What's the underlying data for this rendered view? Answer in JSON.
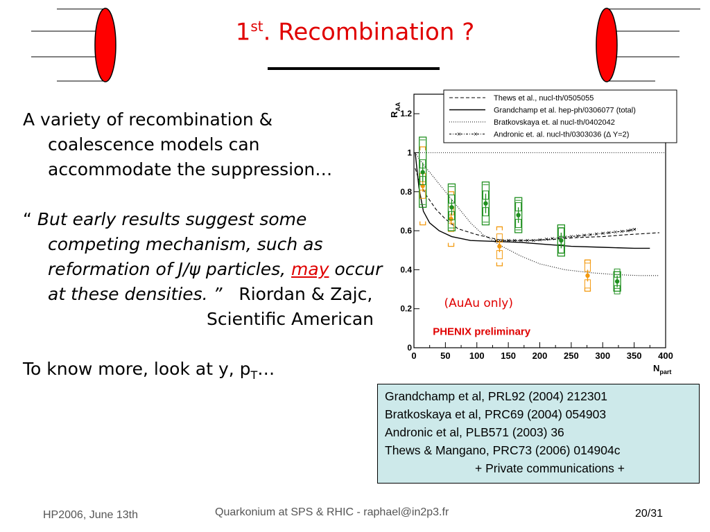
{
  "slide": {
    "title_prefix": "1",
    "title_sup": "st",
    "title_rest": ". Recombination ?",
    "bullet1": "A variety of recombination & coalescence models can accommodate the suppression…",
    "quote_open": "“ ",
    "quote_part1": "But early results suggest some competing mechanism, such as reformation of J/ψ particles, ",
    "quote_may": "may",
    "quote_part2": " occur at these densities. ”",
    "quote_authors": "Riordan & Zajc,",
    "quote_source": "Scientific American",
    "more_prefix": "To know more, look at y, p",
    "more_sub": "T",
    "more_suffix": "…"
  },
  "references": [
    "Grandchamp et al, PRL92 (2004) 212301",
    "Bratkoskaya et al, PRC69 (2004) 054903",
    "Andronic et al, PLB571 (2003) 36",
    "Thews & Mangano, PRC73 (2006) 014904c",
    "+ Private communications +"
  ],
  "footer": {
    "left": "HP2006, June 13th",
    "center": "Quarkonium at SPS & RHIC - raphael@in2p3.fr",
    "right": "20/31"
  },
  "colors": {
    "title": "#e00000",
    "ref_box": "#cde9ea",
    "orange": "#f39a10",
    "green": "#209020",
    "phenix": "#e00000"
  },
  "chart_data": {
    "type": "scatter",
    "xlabel_main": "N",
    "xlabel_sub": "part",
    "ylabel_main": "R",
    "ylabel_sub": "AA",
    "xlim": [
      0,
      400
    ],
    "ylim": [
      0,
      1.3
    ],
    "xticks": [
      0,
      50,
      100,
      150,
      200,
      250,
      300,
      350,
      400
    ],
    "yticks": [
      0,
      0.2,
      0.4,
      0.6,
      0.8,
      1,
      1.2
    ],
    "ytick_labels": [
      "0",
      "0.2",
      "0.4",
      "0.6",
      "0.8",
      "1",
      "1.2"
    ],
    "reference_line": 1,
    "annotation_auau": "(AuAu only)",
    "annotation_phenix": "PHENIX preliminary",
    "legend": [
      {
        "label": "Thews et al., nucl-th/0505055",
        "style": "dashed"
      },
      {
        "label": "Grandchamp et al. hep-ph/0306077 (total)",
        "style": "solid"
      },
      {
        "label": "Bratkovskaya et. al nucl-th/0402042",
        "style": "dotted"
      },
      {
        "label": "Andronic et. al. nucl-th/0303036 (Δ Y=2)",
        "style": "dash-x"
      }
    ],
    "models": [
      {
        "style": "dashed",
        "x": [
          2,
          10,
          20,
          35,
          50,
          70,
          100,
          140,
          180,
          220,
          260,
          300,
          340,
          390
        ],
        "y": [
          0.92,
          0.84,
          0.78,
          0.71,
          0.66,
          0.61,
          0.58,
          0.55,
          0.55,
          0.555,
          0.565,
          0.57,
          0.58,
          0.59
        ]
      },
      {
        "style": "solid",
        "x": [
          2,
          8,
          15,
          25,
          40,
          60,
          90,
          130,
          170,
          210,
          250,
          300,
          350,
          375
        ],
        "y": [
          1.0,
          0.82,
          0.7,
          0.64,
          0.6,
          0.57,
          0.55,
          0.545,
          0.54,
          0.53,
          0.52,
          0.515,
          0.51,
          0.51
        ]
      },
      {
        "style": "dotted",
        "x": [
          2,
          10,
          20,
          35,
          50,
          70,
          90,
          110,
          140,
          170,
          200,
          240,
          280,
          320,
          360,
          390
        ],
        "y": [
          1.0,
          0.96,
          0.92,
          0.86,
          0.8,
          0.72,
          0.64,
          0.58,
          0.52,
          0.47,
          0.43,
          0.4,
          0.385,
          0.375,
          0.37,
          0.37
        ]
      },
      {
        "style": "dash-x",
        "x": [
          130,
          160,
          190,
          220,
          250,
          280,
          310,
          340,
          355
        ],
        "y": [
          0.55,
          0.55,
          0.55,
          0.56,
          0.57,
          0.58,
          0.59,
          0.6,
          0.61
        ]
      }
    ],
    "series": [
      {
        "color": "orange",
        "x": [
          14,
          59,
          136,
          276
        ],
        "y": [
          0.83,
          0.66,
          0.52,
          0.37
        ],
        "err": [
          0.03,
          0.03,
          0.03,
          0.03
        ],
        "sys": [
          0.2,
          0.14,
          0.1,
          0.08
        ]
      },
      {
        "color": "green",
        "x": [
          14,
          60,
          114,
          166,
          234,
          323
        ],
        "y": [
          0.9,
          0.72,
          0.74,
          0.68,
          0.55,
          0.34
        ],
        "err": [
          0.05,
          0.04,
          0.05,
          0.04,
          0.04,
          0.03
        ],
        "sys": [
          0.18,
          0.12,
          0.11,
          0.09,
          0.08,
          0.05
        ]
      }
    ]
  }
}
